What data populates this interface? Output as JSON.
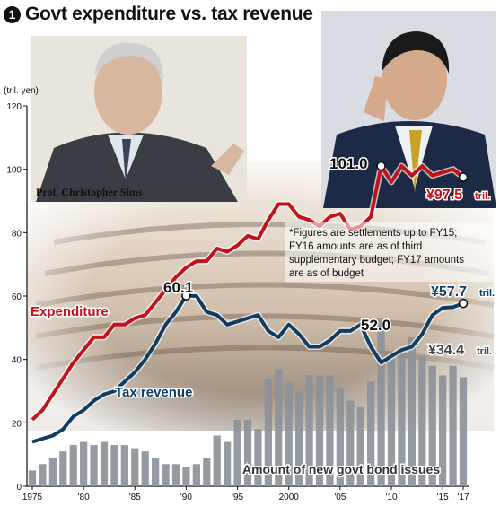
{
  "header": {
    "number": "1",
    "title": "Govt expenditure vs. tax revenue"
  },
  "photo_caption": "Prof. Christopher Sims",
  "footnote_lines": [
    "*Figures are settlements up to FY15;",
    "FY16 amounts are as of third",
    "supplementary budget; FY17 amounts",
    "are as of budget"
  ],
  "chart_data": {
    "type": "line",
    "ylabel": "(tril. yen)",
    "ylim": [
      0,
      120
    ],
    "yticks": [
      0,
      20,
      40,
      60,
      80,
      100,
      120
    ],
    "x": [
      1975,
      1976,
      1977,
      1978,
      1979,
      1980,
      1981,
      1982,
      1983,
      1984,
      1985,
      1986,
      1987,
      1988,
      1989,
      1990,
      1991,
      1992,
      1993,
      1994,
      1995,
      1996,
      1997,
      1998,
      1999,
      2000,
      2001,
      2002,
      2003,
      2004,
      2005,
      2006,
      2007,
      2008,
      2009,
      2010,
      2011,
      2012,
      2013,
      2014,
      2015,
      2016,
      2017
    ],
    "xlim": [
      1975,
      2017
    ],
    "xticks": [
      {
        "x": 1975,
        "label": "1975"
      },
      {
        "x": 1980,
        "label": "'80"
      },
      {
        "x": 1985,
        "label": "'85"
      },
      {
        "x": 1990,
        "label": "'90"
      },
      {
        "x": 1995,
        "label": "'95"
      },
      {
        "x": 2000,
        "label": "2000"
      },
      {
        "x": 2005,
        "label": "'05"
      },
      {
        "x": 2010,
        "label": "'10"
      },
      {
        "x": 2015,
        "label": "'15"
      },
      {
        "x": 2017,
        "label": "'17"
      }
    ],
    "series": [
      {
        "name": "Expenditure",
        "color": "#c0141c",
        "values": [
          21,
          24,
          29,
          34,
          39,
          43,
          47,
          47,
          51,
          51,
          53,
          54,
          58,
          62,
          66,
          69,
          71,
          71,
          75,
          74,
          76,
          79,
          78,
          84,
          89,
          89,
          85,
          84,
          82,
          85,
          86,
          81,
          82,
          85,
          101,
          96,
          101,
          98,
          101,
          98,
          99,
          100,
          97.5
        ]
      },
      {
        "name": "Tax revenue",
        "color": "#123d63",
        "values": [
          14,
          15,
          16,
          18,
          22,
          24,
          27,
          29,
          30,
          33,
          36,
          40,
          45,
          51,
          55,
          60.1,
          60,
          55,
          54,
          51,
          52,
          53,
          54,
          49,
          47,
          51,
          48,
          44,
          44,
          46,
          49,
          49,
          51,
          44,
          39,
          41,
          43,
          44,
          48,
          54,
          56.3,
          56.5,
          57.7
        ]
      }
    ],
    "bars": {
      "name": "Amount of new govt bond issues",
      "color": "#8c929a",
      "values": [
        5,
        7,
        9,
        11,
        13,
        14,
        13,
        14,
        13,
        13,
        12,
        11,
        9,
        7,
        7,
        6,
        7,
        9,
        16,
        14,
        21,
        21,
        18,
        34,
        37,
        33,
        30,
        35,
        35,
        35,
        31,
        27,
        25,
        33,
        52,
        42,
        43,
        47,
        41,
        38,
        35,
        38,
        34.4
      ]
    },
    "annotations": [
      {
        "text": "60.1",
        "x": 1990,
        "y": 60.1
      },
      {
        "text": "101.0",
        "x": 2009,
        "y": 101.0
      },
      {
        "text": "52.0",
        "x": 2009,
        "y": 52.0
      },
      {
        "text": "¥97.5",
        "unit": "tril.",
        "x": 2017,
        "y": 97.5
      },
      {
        "text": "¥57.7",
        "unit": "tril.",
        "x": 2017,
        "y": 57.7
      },
      {
        "text": "¥34.4",
        "unit": "tril.",
        "x": 2017,
        "y": 34.4
      }
    ]
  },
  "colors": {
    "expenditure": "#c0141c",
    "tax_revenue": "#123d63",
    "bonds": "#8c929a"
  }
}
